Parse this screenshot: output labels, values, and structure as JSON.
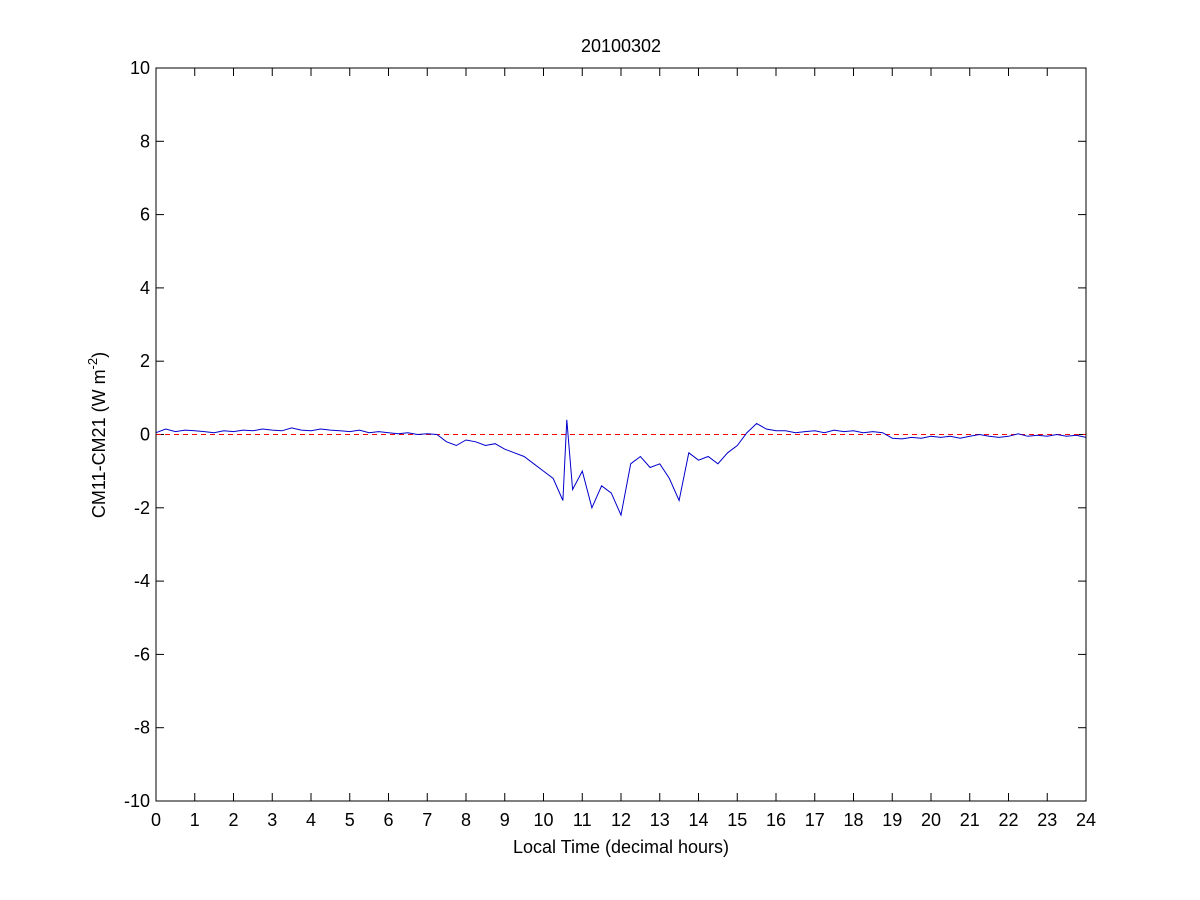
{
  "chart_data": {
    "type": "line",
    "title": "20100302",
    "xlabel": "Local Time (decimal hours)",
    "ylabel_main": "CM11-CM21 (W m",
    "ylabel_sup": "-2",
    "ylabel_close": ")",
    "xlim": [
      0,
      24
    ],
    "ylim": [
      -10,
      10
    ],
    "xticks": [
      0,
      1,
      2,
      3,
      4,
      5,
      6,
      7,
      8,
      9,
      10,
      11,
      12,
      13,
      14,
      15,
      16,
      17,
      18,
      19,
      20,
      21,
      22,
      23,
      24
    ],
    "yticks": [
      -10,
      -8,
      -6,
      -4,
      -2,
      0,
      2,
      4,
      6,
      8,
      10
    ],
    "grid": false,
    "colors": {
      "series": "#0000cc",
      "reference": "#ff0000"
    },
    "reference_line": {
      "y": 0,
      "style": "dashed"
    },
    "series": [
      {
        "x": [
          0,
          0.25,
          0.5,
          0.75,
          1,
          1.25,
          1.5,
          1.75,
          2,
          2.25,
          2.5,
          2.75,
          3,
          3.25,
          3.5,
          3.75,
          4,
          4.25,
          4.5,
          4.75,
          5,
          5.25,
          5.5,
          5.75,
          6,
          6.25,
          6.5,
          6.75,
          7,
          7.25,
          7.5,
          7.75,
          8,
          8.25,
          8.5,
          8.75,
          9,
          9.25,
          9.5,
          9.75,
          10,
          10.25,
          10.5,
          10.6,
          10.75,
          11,
          11.25,
          11.5,
          11.75,
          12,
          12.25,
          12.5,
          12.75,
          13,
          13.25,
          13.5,
          13.75,
          14,
          14.25,
          14.5,
          14.75,
          15,
          15.25,
          15.5,
          15.75,
          16,
          16.25,
          16.5,
          16.75,
          17,
          17.25,
          17.5,
          17.75,
          18,
          18.25,
          18.5,
          18.75,
          19,
          19.25,
          19.5,
          19.75,
          20,
          20.25,
          20.5,
          20.75,
          21,
          21.25,
          21.5,
          21.75,
          22,
          22.25,
          22.5,
          22.75,
          23,
          23.25,
          23.5,
          23.75,
          24
        ],
        "y": [
          0.05,
          0.15,
          0.08,
          0.12,
          0.1,
          0.08,
          0.05,
          0.1,
          0.08,
          0.12,
          0.1,
          0.15,
          0.12,
          0.1,
          0.18,
          0.12,
          0.1,
          0.15,
          0.12,
          0.1,
          0.08,
          0.12,
          0.05,
          0.08,
          0.05,
          0.02,
          0.05,
          0.0,
          0.02,
          0.0,
          -0.2,
          -0.3,
          -0.15,
          -0.2,
          -0.3,
          -0.25,
          -0.4,
          -0.5,
          -0.6,
          -0.8,
          -1.0,
          -1.2,
          -1.8,
          0.4,
          -1.5,
          -1.0,
          -2.0,
          -1.4,
          -1.6,
          -2.2,
          -0.8,
          -0.6,
          -0.9,
          -0.8,
          -1.2,
          -1.8,
          -0.5,
          -0.7,
          -0.6,
          -0.8,
          -0.5,
          -0.3,
          0.05,
          0.3,
          0.15,
          0.1,
          0.1,
          0.05,
          0.08,
          0.1,
          0.05,
          0.12,
          0.08,
          0.1,
          0.05,
          0.08,
          0.05,
          -0.1,
          -0.12,
          -0.08,
          -0.1,
          -0.05,
          -0.08,
          -0.05,
          -0.1,
          -0.05,
          0.0,
          -0.05,
          -0.08,
          -0.05,
          0.02,
          -0.05,
          -0.02,
          -0.05,
          0.0,
          -0.05,
          -0.02,
          -0.08
        ]
      }
    ]
  }
}
